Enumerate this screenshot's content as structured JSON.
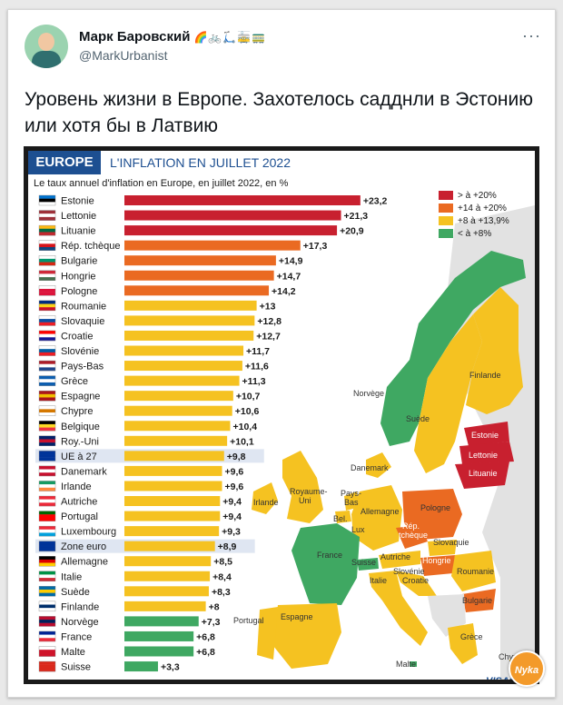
{
  "tweet": {
    "author_name": "Марк Баровский",
    "author_badges": "🌈🚲🛴🚋🚃",
    "author_handle": "@MarkUrbanist",
    "more_label": "···",
    "text": "Уровень жизни в Европе. Захотелось садднли в Эстонию или хотя бы в Латвию"
  },
  "figure": {
    "europe_label": "EUROPE",
    "title": "L'INFLATION EN JUILLET 2022",
    "subtitle": "Le taux annuel d'inflation en Europe, en juillet 2022, en %",
    "credit": "VISACT",
    "watermark": "Nyka",
    "legend": [
      {
        "label": "> à +20%",
        "color": "#c8202f"
      },
      {
        "label": "+14 à +20%",
        "color": "#ea6a22"
      },
      {
        "label": "+8 à +13,9%",
        "color": "#f5c221"
      },
      {
        "label": "< à +8%",
        "color": "#3fa862"
      }
    ],
    "map_labels": {
      "norvege": "Norvège",
      "suede": "Suède",
      "finlande": "Finlande",
      "estonie": "Estonie",
      "lettonie": "Lettonie",
      "lituanie": "Lituanie",
      "danemark": "Danemark",
      "irlande": "Irlande",
      "royaume_uni_1": "Royaume-",
      "royaume_uni_2": "Uni",
      "pays_bas_1": "Pays-",
      "pays_bas_2": "Bas",
      "bel": "Bel.",
      "lux": "Lux",
      "allemagne": "Allemagne",
      "pologne": "Pologne",
      "rep_tcheque_1": "Rép.",
      "rep_tcheque_2": "tchèque",
      "slovaquie": "Slovaquie",
      "france": "France",
      "suisse": "Suisse",
      "autriche": "Autriche",
      "hongrie": "Hongrie",
      "roumanie": "Roumanie",
      "slovenie": "Slovénie",
      "croatie": "Croatie",
      "italie": "Italie",
      "bulgarie": "Bulgarie",
      "portugal": "Portugal",
      "espagne": "Espagne",
      "grece": "Grèce",
      "malte": "Malte",
      "chypre": "Chypre"
    }
  },
  "chart_data": {
    "type": "bar",
    "orientation": "horizontal",
    "title": "L'INFLATION EN JUILLET 2022",
    "subtitle": "Le taux annuel d'inflation en Europe, en juillet 2022, en %",
    "categories": [
      "Estonie",
      "Lettonie",
      "Lituanie",
      "Rép. tchèque",
      "Bulgarie",
      "Hongrie",
      "Pologne",
      "Roumanie",
      "Slovaquie",
      "Croatie",
      "Slovénie",
      "Pays-Bas",
      "Grèce",
      "Espagne",
      "Chypre",
      "Belgique",
      "Roy.-Uni",
      "UE à 27",
      "Danemark",
      "Irlande",
      "Autriche",
      "Portugal",
      "Luxembourg",
      "Zone euro",
      "Allemagne",
      "Italie",
      "Suède",
      "Finlande",
      "Norvège",
      "France",
      "Malte",
      "Suisse"
    ],
    "values": [
      23.2,
      21.3,
      20.9,
      17.3,
      14.9,
      14.7,
      14.2,
      13,
      12.8,
      12.7,
      11.7,
      11.6,
      11.3,
      10.7,
      10.6,
      10.4,
      10.1,
      9.8,
      9.6,
      9.6,
      9.4,
      9.4,
      9.3,
      8.9,
      8.5,
      8.4,
      8.3,
      8,
      7.3,
      6.8,
      6.8,
      3.3
    ],
    "value_labels": [
      "+23,2",
      "+21,3",
      "+20,9",
      "+17,3",
      "+14,9",
      "+14,7",
      "+14,2",
      "+13",
      "+12,8",
      "+12,7",
      "+11,7",
      "+11,6",
      "+11,3",
      "+10,7",
      "+10,6",
      "+10,4",
      "+10,1",
      "+9,8",
      "+9,6",
      "+9,6",
      "+9,4",
      "+9,4",
      "+9,3",
      "+8,9",
      "+8,5",
      "+8,4",
      "+8,3",
      "+8",
      "+7,3",
      "+6,8",
      "+6,8",
      "+3,3"
    ],
    "flags": [
      [
        "#0072ce",
        "#000000",
        "#ffffff"
      ],
      [
        "#9e3039",
        "#ffffff",
        "#9e3039"
      ],
      [
        "#fdb913",
        "#006a44",
        "#c1272d"
      ],
      [
        "#ffffff",
        "#d7141a",
        "#11457e"
      ],
      [
        "#ffffff",
        "#00966e",
        "#d62612"
      ],
      [
        "#ce2939",
        "#ffffff",
        "#477050"
      ],
      [
        "#ffffff",
        "#dc143c",
        "#dc143c"
      ],
      [
        "#002b7f",
        "#fcd116",
        "#ce1126"
      ],
      [
        "#ffffff",
        "#0b4ea2",
        "#ee1c25"
      ],
      [
        "#ff0000",
        "#ffffff",
        "#171796"
      ],
      [
        "#ffffff",
        "#005da4",
        "#ed1c24"
      ],
      [
        "#ae1c28",
        "#ffffff",
        "#21468b"
      ],
      [
        "#0d5eaf",
        "#ffffff",
        "#0d5eaf"
      ],
      [
        "#aa151b",
        "#f1bf00",
        "#aa151b"
      ],
      [
        "#ffffff",
        "#d57800",
        "#ffffff"
      ],
      [
        "#000000",
        "#fdda24",
        "#ef3340"
      ],
      [
        "#012169",
        "#c8102e",
        "#012169"
      ],
      [
        "#003399",
        "#003399",
        "#003399"
      ],
      [
        "#c8102e",
        "#ffffff",
        "#c8102e"
      ],
      [
        "#169b62",
        "#ffffff",
        "#ff883e"
      ],
      [
        "#ed2939",
        "#ffffff",
        "#ed2939"
      ],
      [
        "#006600",
        "#ff0000",
        "#ff0000"
      ],
      [
        "#ed2939",
        "#ffffff",
        "#00a1de"
      ],
      [
        "#003399",
        "#003399",
        "#003399"
      ],
      [
        "#000000",
        "#dd0000",
        "#ffce00"
      ],
      [
        "#009246",
        "#ffffff",
        "#ce2b37"
      ],
      [
        "#006aa7",
        "#fecc00",
        "#006aa7"
      ],
      [
        "#ffffff",
        "#002f6c",
        "#ffffff"
      ],
      [
        "#ba0c2f",
        "#00205b",
        "#ba0c2f"
      ],
      [
        "#002395",
        "#ffffff",
        "#ed2939"
      ],
      [
        "#ffffff",
        "#cf142b",
        "#cf142b"
      ],
      [
        "#da291c",
        "#da291c",
        "#da291c"
      ]
    ],
    "highlighted": [
      "UE à 27",
      "Zone euro"
    ],
    "color_scale": [
      {
        "min": 20,
        "color": "#c8202f"
      },
      {
        "min": 14,
        "color": "#ea6a22"
      },
      {
        "min": 8,
        "color": "#f5c221"
      },
      {
        "min": 0,
        "color": "#3fa862"
      }
    ],
    "xlim": [
      0,
      25
    ],
    "grid": false,
    "legend_position": "top-right"
  }
}
